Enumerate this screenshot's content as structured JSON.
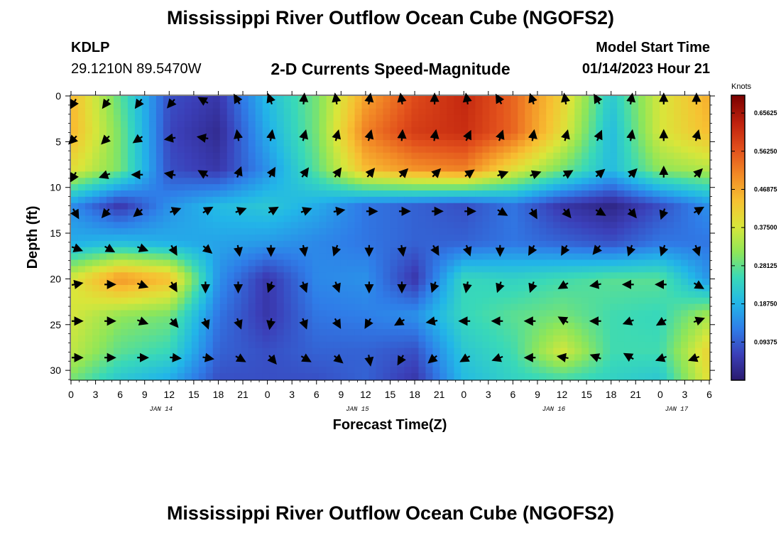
{
  "header": {
    "title": "Mississippi River Outflow Ocean Cube (NGOFS2)",
    "station_id": "KDLP",
    "station_coords": "29.1210N  89.5470W",
    "subtitle": "2-D Currents Speed-Magnitude",
    "model_start_label": "Model Start Time",
    "model_start_time": "01/14/2023 Hour 21"
  },
  "footer": {
    "title": "Mississippi River Outflow Ocean Cube (NGOFS2)"
  },
  "colors": {
    "scale": [
      "#2a1a6e",
      "#3b3fb8",
      "#2f7de8",
      "#22b6e8",
      "#39d9b8",
      "#8fe658",
      "#d9e63a",
      "#f7c132",
      "#f28a26",
      "#e2501c",
      "#c0220e",
      "#7a0000"
    ]
  },
  "chart_data": {
    "type": "heatmap",
    "title": "2-D Currents Speed-Magnitude",
    "xlabel": "Forecast Time(Z)",
    "ylabel": "Depth (ft)",
    "xlim": [
      0,
      78
    ],
    "ylim": [
      0,
      31
    ],
    "y_inverted": true,
    "x_tick_labels": [
      "0",
      "3",
      "6",
      "9",
      "12",
      "15",
      "18",
      "21",
      "0",
      "3",
      "6",
      "9",
      "12",
      "15",
      "18",
      "21",
      "0",
      "3",
      "6",
      "9",
      "12",
      "15",
      "18",
      "21",
      "0",
      "3",
      "6"
    ],
    "date_labels": [
      {
        "text": "JAN 14",
        "hour": 11
      },
      {
        "text": "JAN 15",
        "hour": 35
      },
      {
        "text": "JAN 16",
        "hour": 59
      },
      {
        "text": "JAN 17",
        "hour": 74
      }
    ],
    "y_ticks": [
      0,
      5,
      10,
      15,
      20,
      25,
      30
    ],
    "colorbar": {
      "unit": "Knots",
      "min": 0,
      "max": 0.7,
      "tick_values": [
        0.09375,
        0.1875,
        0.28125,
        0.375,
        0.46875,
        0.5625,
        0.65625
      ],
      "tick_labels": [
        "0.09375",
        "0.18750",
        "0.28125",
        "0.37500",
        "0.46875",
        "0.56250",
        "0.65625"
      ]
    },
    "depth_levels": [
      0,
      4,
      8,
      12,
      16,
      20,
      24,
      28,
      31
    ],
    "time_hours": [
      0,
      6,
      12,
      18,
      24,
      30,
      36,
      42,
      48,
      54,
      60,
      66,
      72,
      78
    ],
    "speed_knots": [
      [
        0.46,
        0.28,
        0.08,
        0.05,
        0.2,
        0.3,
        0.48,
        0.58,
        0.63,
        0.55,
        0.42,
        0.22,
        0.38,
        0.47
      ],
      [
        0.46,
        0.3,
        0.07,
        0.03,
        0.18,
        0.3,
        0.52,
        0.6,
        0.62,
        0.55,
        0.4,
        0.2,
        0.38,
        0.45
      ],
      [
        0.4,
        0.3,
        0.08,
        0.05,
        0.15,
        0.28,
        0.45,
        0.5,
        0.52,
        0.4,
        0.3,
        0.2,
        0.32,
        0.35
      ],
      [
        0.15,
        0.05,
        0.15,
        0.2,
        0.22,
        0.18,
        0.12,
        0.1,
        0.08,
        0.12,
        0.05,
        0.02,
        0.08,
        0.15
      ],
      [
        0.18,
        0.2,
        0.18,
        0.17,
        0.16,
        0.14,
        0.12,
        0.1,
        0.1,
        0.12,
        0.1,
        0.08,
        0.12,
        0.12
      ],
      [
        0.38,
        0.5,
        0.45,
        0.15,
        0.05,
        0.14,
        0.15,
        0.05,
        0.25,
        0.24,
        0.26,
        0.28,
        0.28,
        0.15
      ],
      [
        0.38,
        0.32,
        0.3,
        0.12,
        0.05,
        0.12,
        0.13,
        0.15,
        0.25,
        0.28,
        0.3,
        0.26,
        0.25,
        0.34
      ],
      [
        0.36,
        0.28,
        0.25,
        0.1,
        0.08,
        0.1,
        0.1,
        0.08,
        0.22,
        0.26,
        0.38,
        0.26,
        0.26,
        0.42
      ],
      [
        0.3,
        0.22,
        0.18,
        0.08,
        0.08,
        0.08,
        0.1,
        0.05,
        0.2,
        0.24,
        0.26,
        0.24,
        0.22,
        0.4
      ]
    ],
    "vector_depths": [
      0.3,
      4.3,
      8.3,
      12.3,
      16.3,
      20.3,
      24.3,
      28.3
    ],
    "vector_hours": [
      0,
      4,
      8,
      12,
      16,
      20,
      24,
      28,
      32,
      36,
      40,
      44,
      48,
      52,
      56,
      60,
      64,
      68,
      72,
      76
    ],
    "vector_direction_deg": [
      [
        210,
        215,
        215,
        220,
        300,
        330,
        340,
        5,
        350,
        10,
        350,
        0,
        350,
        330,
        340,
        350,
        330,
        10,
        0,
        0
      ],
      [
        225,
        225,
        235,
        260,
        280,
        350,
        10,
        15,
        15,
        15,
        5,
        10,
        25,
        20,
        10,
        15,
        25,
        10,
        0,
        15
      ],
      [
        210,
        250,
        270,
        280,
        300,
        20,
        30,
        35,
        35,
        40,
        45,
        45,
        55,
        70,
        70,
        60,
        50,
        45,
        0,
        45
      ],
      [
        150,
        220,
        230,
        70,
        60,
        70,
        60,
        70,
        80,
        90,
        90,
        90,
        90,
        120,
        150,
        140,
        120,
        140,
        200,
        60
      ],
      [
        110,
        120,
        110,
        150,
        130,
        170,
        180,
        170,
        200,
        180,
        170,
        150,
        160,
        180,
        210,
        210,
        220,
        200,
        200,
        160
      ],
      [
        80,
        90,
        110,
        150,
        180,
        180,
        200,
        160,
        160,
        180,
        180,
        200,
        190,
        200,
        200,
        240,
        260,
        270,
        270,
        120
      ],
      [
        90,
        90,
        110,
        140,
        160,
        160,
        190,
        160,
        150,
        210,
        240,
        260,
        270,
        270,
        270,
        300,
        270,
        250,
        240,
        70
      ],
      [
        90,
        90,
        90,
        95,
        100,
        120,
        140,
        120,
        130,
        170,
        210,
        230,
        240,
        250,
        270,
        280,
        290,
        300,
        250,
        250
      ]
    ]
  }
}
